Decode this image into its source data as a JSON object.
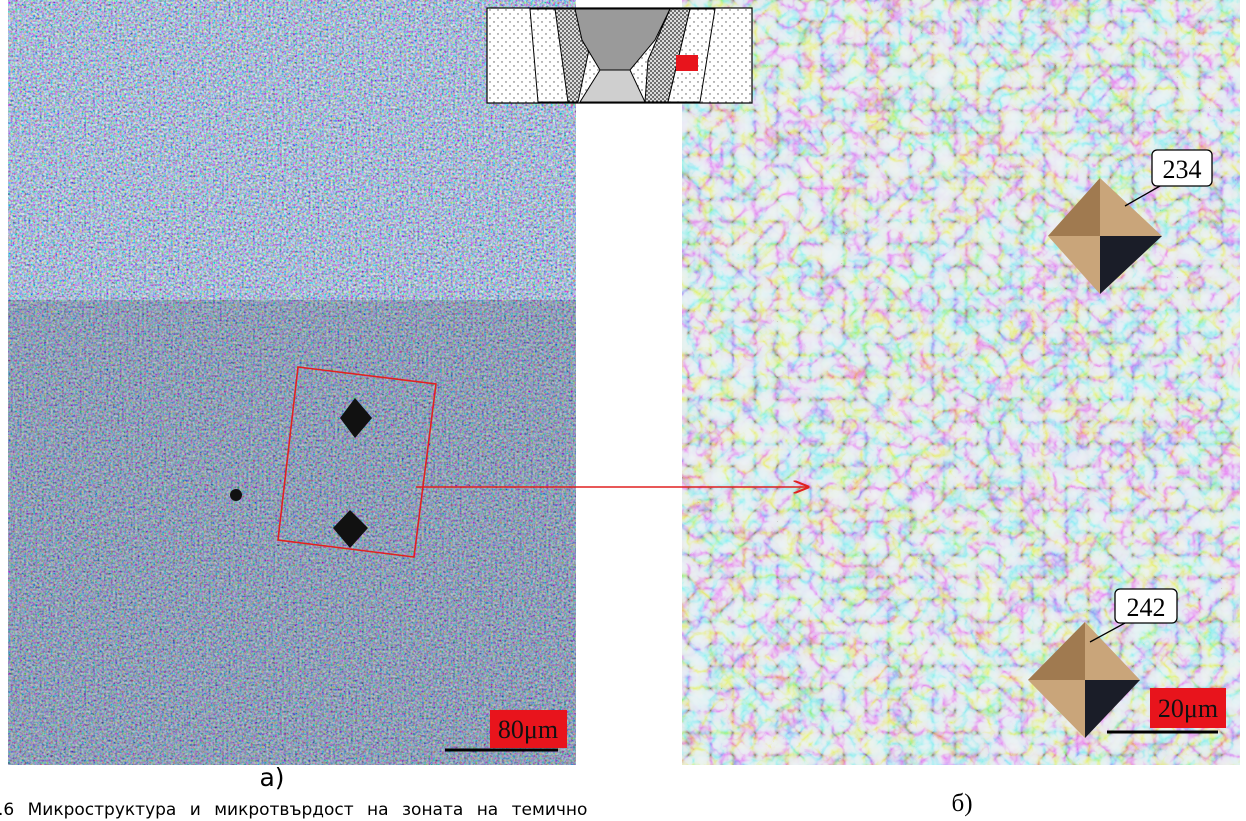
{
  "figure": {
    "panel_a": {
      "label": "а)",
      "scale_bar": "80μm"
    },
    "panel_b": {
      "label": "б)",
      "scale_bar": "20μm",
      "hardness": [
        "234",
        "242"
      ]
    },
    "caption": ".6 Микроструктура и микротвърдост на зоната на темично"
  }
}
